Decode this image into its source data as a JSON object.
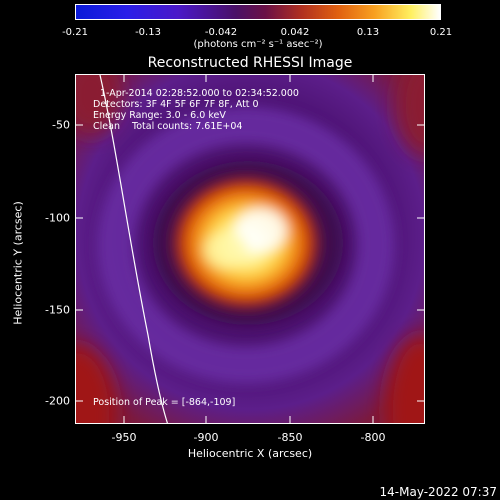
{
  "colorbar": {
    "ticks": [
      "-0.21",
      "-0.13",
      "-0.042",
      "0.042",
      "0.13",
      "0.21"
    ],
    "unit": "(photons cm⁻² s⁻¹ asec⁻²)"
  },
  "title": "Reconstructed RHESSI Image",
  "info": {
    "time": "1-Apr-2014 02:28:52.000 to 02:34:52.000",
    "detectors": "Detectors: 3F 4F 5F 6F 7F 8F, Att 0",
    "energy": "Energy Range: 3.0 - 6.0 keV",
    "clean": "Clean    Total counts: 7.61E+04",
    "peak": "Position of Peak = [-864,-109]"
  },
  "x_axis": {
    "label": "Heliocentric X (arcsec)",
    "ticks": [
      "-950",
      "-900",
      "-850",
      "-800"
    ]
  },
  "y_axis": {
    "label": "Heliocentric Y (arcsec)",
    "ticks": [
      "-50",
      "-100",
      "-150",
      "-200"
    ]
  },
  "timestamp": "14-May-2022 07:37"
}
